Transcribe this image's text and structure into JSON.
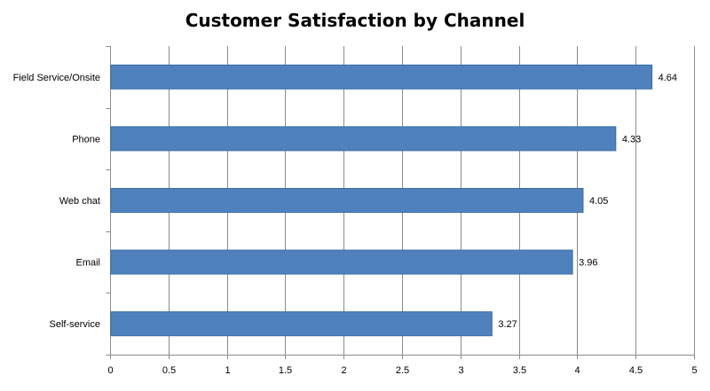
{
  "chart_data": {
    "type": "bar",
    "orientation": "horizontal",
    "title": "Customer Satisfaction by Channel",
    "categories": [
      "Field Service/Onsite",
      "Phone",
      "Web chat",
      "Email",
      "Self-service"
    ],
    "values": [
      4.64,
      4.33,
      4.05,
      3.96,
      3.27
    ],
    "value_labels": [
      "4.64",
      "4.33",
      "4.05",
      "3.96",
      "3.27"
    ],
    "xlim": [
      0,
      5
    ],
    "xticks": [
      0,
      0.5,
      1,
      1.5,
      2,
      2.5,
      3,
      3.5,
      4,
      4.5,
      5
    ],
    "xtick_labels": [
      "0",
      "0.5",
      "1",
      "1.5",
      "2",
      "2.5",
      "3",
      "3.5",
      "4",
      "4.5",
      "5"
    ],
    "xlabel": "",
    "ylabel": "",
    "grid": true,
    "legend": "none",
    "bar_color": "#4f81bd"
  }
}
